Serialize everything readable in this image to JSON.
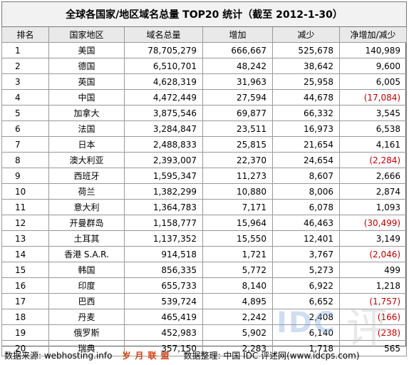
{
  "title": "全球各国家/地区域名总量 TOP20 统计（截至 2012-1-30）",
  "columns": [
    "排名",
    "国家地区",
    "域名总量",
    "增加",
    "减少",
    "净增加/减少"
  ],
  "rows": [
    {
      "rank": "1",
      "country": "美国",
      "total": "78,705,279",
      "added": "666,667",
      "removed": "525,678",
      "net": "140,989",
      "negative": false
    },
    {
      "rank": "2",
      "country": "德国",
      "total": "6,510,701",
      "added": "48,242",
      "removed": "38,642",
      "net": "9,600",
      "negative": false
    },
    {
      "rank": "3",
      "country": "英国",
      "total": "4,628,319",
      "added": "31,963",
      "removed": "25,958",
      "net": "6,005",
      "negative": false
    },
    {
      "rank": "4",
      "country": "中国",
      "total": "4,472,449",
      "added": "27,594",
      "removed": "44,678",
      "net": "(17,084)",
      "negative": true
    },
    {
      "rank": "5",
      "country": "加拿大",
      "total": "3,875,546",
      "added": "69,877",
      "removed": "66,332",
      "net": "3,545",
      "negative": false
    },
    {
      "rank": "6",
      "country": "法国",
      "total": "3,284,847",
      "added": "23,511",
      "removed": "16,973",
      "net": "6,538",
      "negative": false
    },
    {
      "rank": "7",
      "country": "日本",
      "total": "2,488,833",
      "added": "25,815",
      "removed": "21,654",
      "net": "4,161",
      "negative": false
    },
    {
      "rank": "8",
      "country": "澳大利亚",
      "total": "2,393,007",
      "added": "22,370",
      "removed": "24,654",
      "net": "(2,284)",
      "negative": true
    },
    {
      "rank": "9",
      "country": "西班牙",
      "total": "1,595,347",
      "added": "11,273",
      "removed": "8,607",
      "net": "2,666",
      "negative": false
    },
    {
      "rank": "10",
      "country": "荷兰",
      "total": "1,382,299",
      "added": "10,880",
      "removed": "8,006",
      "net": "2,874",
      "negative": false
    },
    {
      "rank": "11",
      "country": "意大利",
      "total": "1,364,783",
      "added": "7,171",
      "removed": "6,078",
      "net": "1,093",
      "negative": false
    },
    {
      "rank": "12",
      "country": "开曼群岛",
      "total": "1,158,777",
      "added": "15,964",
      "removed": "46,463",
      "net": "(30,499)",
      "negative": true
    },
    {
      "rank": "13",
      "country": "土耳其",
      "total": "1,137,352",
      "added": "15,550",
      "removed": "12,401",
      "net": "3,149",
      "negative": false
    },
    {
      "rank": "14",
      "country": "香港 S.A.R.",
      "total": "914,518",
      "added": "1,721",
      "removed": "3,767",
      "net": "(2,046)",
      "negative": true
    },
    {
      "rank": "15",
      "country": "韩国",
      "total": "856,335",
      "added": "5,772",
      "removed": "5,273",
      "net": "499",
      "negative": false
    },
    {
      "rank": "16",
      "country": "印度",
      "total": "655,733",
      "added": "8,140",
      "removed": "6,922",
      "net": "1,218",
      "negative": false
    },
    {
      "rank": "17",
      "country": "巴西",
      "total": "539,724",
      "added": "4,895",
      "removed": "6,652",
      "net": "(1,757)",
      "negative": true
    },
    {
      "rank": "18",
      "country": "丹麦",
      "total": "465,419",
      "added": "2,242",
      "removed": "2,408",
      "net": "(166)",
      "negative": true
    },
    {
      "rank": "19",
      "country": "俄罗斯",
      "total": "452,983",
      "added": "5,902",
      "removed": "6,140",
      "net": "(238)",
      "negative": true
    },
    {
      "rank": "20",
      "country": "瑞典",
      "total": "357,150",
      "added": "2,283",
      "removed": "1,718",
      "net": "565",
      "negative": false
    }
  ],
  "footer": {
    "source": "数据来源: webhosting.info",
    "watermark": "岁月联盟",
    "credit": "数据整理: 中国 IDC 评述网(www.idcps.com)"
  },
  "logo": {
    "latin": "IDC",
    "cjk": "评"
  },
  "colors": {
    "negative": "#c00000",
    "watermark": "#d04010"
  }
}
